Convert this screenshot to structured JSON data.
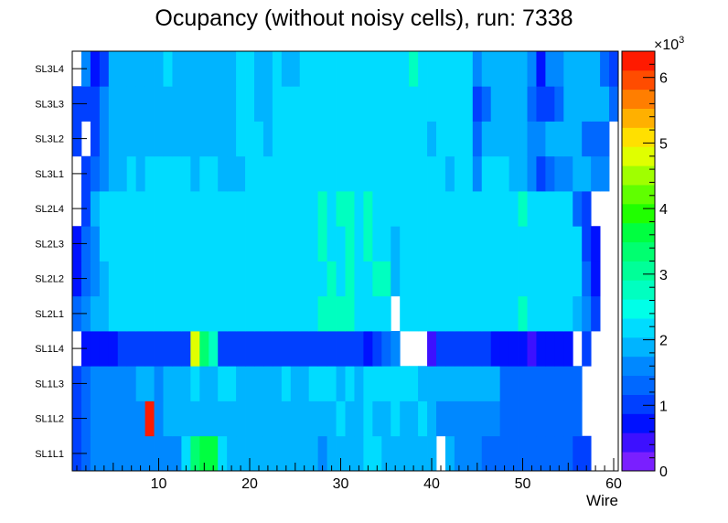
{
  "chart_data": {
    "type": "heatmap",
    "title": "Ocupancy (without noisy cells), run: 7338",
    "xlabel": "Wire",
    "ylabel": "",
    "xlim": [
      0.5,
      60.5
    ],
    "x_ticks": [
      10,
      20,
      30,
      40,
      50,
      60
    ],
    "y_categories": [
      "SL1L1",
      "SL1L2",
      "SL1L3",
      "SL1L4",
      "SL2L1",
      "SL2L2",
      "SL2L3",
      "SL2L4",
      "SL3L1",
      "SL3L2",
      "SL3L3",
      "SL3L4"
    ],
    "z_range": [
      0,
      6400
    ],
    "z_multiplier_label": "×10",
    "z_multiplier_exponent": "3",
    "z_ticks": [
      "0",
      "1",
      "2",
      "3",
      "4",
      "5",
      "6"
    ],
    "z_tick_values": [
      0,
      1000,
      2000,
      3000,
      4000,
      5000,
      6000
    ],
    "palette": [
      "#7a1fff",
      "#3d10ff",
      "#0011ff",
      "#0040ff",
      "#0068ff",
      "#0088ff",
      "#00b4ff",
      "#00dcff",
      "#00ffe8",
      "#00ffc0",
      "#00ff98",
      "#00ff70",
      "#00ff40",
      "#20ff00",
      "#60ff00",
      "#a0ff00",
      "#e0ff00",
      "#ffe000",
      "#ffb000",
      "#ff7e00",
      "#ff4c00",
      "#ff1a00"
    ],
    "rows": [
      {
        "label": "SL1L1",
        "values": [
          1100,
          1300,
          1700,
          1700,
          1700,
          1700,
          1700,
          1700,
          1700,
          1700,
          1700,
          1700,
          2300,
          3400,
          3600,
          3600,
          2300,
          2000,
          2000,
          2000,
          2000,
          2000,
          2000,
          2000,
          2000,
          2000,
          2000,
          1700,
          2000,
          2000,
          2000,
          2000,
          2300,
          2300,
          2000,
          2000,
          2000,
          2000,
          2000,
          2000,
          null,
          2000,
          1700,
          1700,
          1700,
          1200,
          1200,
          1200,
          1200,
          1200,
          1200,
          1200,
          1200,
          1200,
          1200,
          900,
          900,
          null,
          null,
          null
        ]
      },
      {
        "label": "SL1L2",
        "values": [
          1100,
          1300,
          1700,
          1700,
          1500,
          1500,
          1500,
          1500,
          6300,
          1700,
          2000,
          2000,
          2000,
          2000,
          2000,
          2000,
          2000,
          2000,
          2000,
          2000,
          2000,
          2000,
          2000,
          2000,
          2000,
          2000,
          2000,
          2000,
          2000,
          2300,
          2000,
          2000,
          2300,
          2000,
          2000,
          2300,
          2000,
          2000,
          2300,
          2000,
          1700,
          1700,
          1700,
          1700,
          1700,
          1500,
          1700,
          1200,
          1200,
          1200,
          1200,
          1200,
          1200,
          1200,
          1200,
          1200,
          null,
          null,
          null,
          null
        ]
      },
      {
        "label": "SL1L3",
        "values": [
          1100,
          1300,
          1700,
          1700,
          1700,
          1700,
          1700,
          2000,
          2000,
          1700,
          2000,
          2000,
          2000,
          2300,
          2000,
          2000,
          2300,
          2300,
          2000,
          2000,
          2000,
          2000,
          2000,
          2300,
          2000,
          2000,
          2300,
          2300,
          2300,
          2000,
          2300,
          2000,
          2300,
          2300,
          2300,
          2300,
          2300,
          2300,
          2000,
          2000,
          2000,
          2000,
          2000,
          2000,
          2000,
          2000,
          2000,
          1200,
          1200,
          1200,
          1200,
          1200,
          1200,
          1200,
          1200,
          1200,
          null,
          null,
          null,
          null
        ]
      },
      {
        "label": "SL1L4",
        "values": [
          null,
          800,
          800,
          800,
          800,
          1000,
          1000,
          1000,
          1000,
          1000,
          1000,
          1000,
          1000,
          4800,
          3400,
          2800,
          1000,
          1000,
          1000,
          1000,
          1000,
          1000,
          1000,
          1000,
          1000,
          1000,
          1000,
          1000,
          1000,
          1000,
          1000,
          1000,
          700,
          1000,
          1400,
          1700,
          null,
          null,
          null,
          400,
          1000,
          1000,
          1000,
          1000,
          1000,
          1000,
          700,
          700,
          700,
          700,
          500,
          700,
          700,
          700,
          700,
          null,
          1000,
          null,
          null,
          null
        ]
      },
      {
        "label": "SL2L1",
        "values": [
          1400,
          1700,
          2000,
          2000,
          2300,
          2300,
          2300,
          2300,
          2300,
          2300,
          2300,
          2300,
          2300,
          2300,
          2300,
          2300,
          2300,
          2300,
          2300,
          2300,
          2300,
          2300,
          2300,
          2300,
          2300,
          2300,
          2300,
          2800,
          2800,
          2800,
          2800,
          2300,
          2300,
          2300,
          2300,
          null,
          2300,
          2300,
          2300,
          2300,
          2300,
          2300,
          2300,
          2300,
          2300,
          2300,
          2300,
          2300,
          2300,
          2800,
          2300,
          2300,
          2300,
          2300,
          2300,
          2000,
          1700,
          900,
          null,
          null
        ]
      },
      {
        "label": "SL2L2",
        "values": [
          700,
          1400,
          1700,
          2000,
          2300,
          2300,
          2300,
          2300,
          2300,
          2300,
          2300,
          2300,
          2300,
          2300,
          2300,
          2300,
          2300,
          2300,
          2300,
          2300,
          2300,
          2300,
          2300,
          2300,
          2300,
          2300,
          2300,
          2300,
          2800,
          2300,
          2800,
          2300,
          2300,
          2800,
          2800,
          2000,
          2300,
          2300,
          2300,
          2300,
          2300,
          2300,
          2300,
          2300,
          2300,
          2300,
          2300,
          2300,
          2300,
          2300,
          2300,
          2300,
          2300,
          2300,
          2300,
          2300,
          1200,
          800,
          null,
          null
        ]
      },
      {
        "label": "SL2L3",
        "values": [
          800,
          1400,
          1700,
          2300,
          2300,
          2300,
          2300,
          2300,
          2300,
          2300,
          2300,
          2300,
          2300,
          2300,
          2300,
          2300,
          2300,
          2300,
          2300,
          2300,
          2300,
          2300,
          2300,
          2300,
          2300,
          2300,
          2300,
          2800,
          2300,
          2300,
          2800,
          2300,
          2800,
          2300,
          2300,
          2000,
          2300,
          2300,
          2300,
          2300,
          2300,
          2300,
          2300,
          2300,
          2300,
          2300,
          2300,
          2300,
          2300,
          2300,
          2300,
          2300,
          2300,
          2300,
          2300,
          2300,
          1000,
          800,
          null,
          null
        ]
      },
      {
        "label": "SL2L4",
        "values": [
          null,
          1100,
          2000,
          2300,
          2300,
          2300,
          2300,
          2300,
          2300,
          2300,
          2300,
          2300,
          2300,
          2300,
          2300,
          2300,
          2300,
          2300,
          2300,
          2300,
          2300,
          2300,
          2300,
          2300,
          2300,
          2300,
          2300,
          2800,
          2300,
          2800,
          2800,
          2300,
          2800,
          2300,
          2300,
          2300,
          2300,
          2300,
          2300,
          2300,
          2300,
          2300,
          2300,
          2300,
          2300,
          2300,
          2300,
          2300,
          2300,
          2800,
          2300,
          2300,
          2300,
          2300,
          2300,
          1400,
          900,
          null,
          null,
          null
        ]
      },
      {
        "label": "SL3L1",
        "values": [
          null,
          900,
          1300,
          1700,
          2000,
          2000,
          2300,
          2000,
          2300,
          2300,
          2300,
          2300,
          2300,
          2000,
          2300,
          2300,
          2000,
          2000,
          2000,
          2300,
          2300,
          2300,
          2300,
          2300,
          2300,
          2300,
          2300,
          2300,
          2300,
          2300,
          2300,
          2300,
          2300,
          2300,
          2300,
          2300,
          2300,
          2300,
          2300,
          2300,
          2300,
          2000,
          2300,
          2300,
          1700,
          2300,
          2300,
          2300,
          2000,
          2000,
          1700,
          1100,
          1400,
          1700,
          1700,
          2000,
          2000,
          1700,
          1700,
          null
        ]
      },
      {
        "label": "SL3L2",
        "values": [
          900,
          null,
          1100,
          1700,
          2000,
          2000,
          2000,
          2000,
          2000,
          2000,
          2000,
          2000,
          2000,
          2000,
          2000,
          2000,
          2000,
          2000,
          2300,
          2300,
          2300,
          2000,
          2300,
          2300,
          2300,
          2300,
          2300,
          2300,
          2300,
          2300,
          2300,
          2300,
          2300,
          2300,
          2300,
          2300,
          2300,
          2300,
          2300,
          2000,
          2300,
          2300,
          2300,
          2300,
          1400,
          2000,
          2000,
          2000,
          2000,
          2000,
          1700,
          1700,
          2000,
          2000,
          2000,
          2000,
          1400,
          1400,
          1400,
          null
        ]
      },
      {
        "label": "SL3L3",
        "values": [
          900,
          900,
          1100,
          1700,
          2000,
          2000,
          2000,
          2000,
          2000,
          2000,
          2000,
          2000,
          2000,
          2000,
          2000,
          2000,
          2000,
          2000,
          2300,
          2300,
          2000,
          2000,
          2300,
          2300,
          2300,
          2300,
          2300,
          2300,
          2300,
          2300,
          2300,
          2300,
          2300,
          2300,
          2300,
          2300,
          2300,
          2300,
          2300,
          2300,
          2300,
          2300,
          2300,
          2300,
          1000,
          1400,
          2000,
          2000,
          2000,
          2000,
          1400,
          1100,
          1100,
          1400,
          2000,
          2000,
          2000,
          2000,
          2000,
          1400
        ]
      },
      {
        "label": "SL3L4",
        "values": [
          null,
          1700,
          600,
          900,
          2000,
          2000,
          2000,
          2000,
          2000,
          2000,
          2300,
          2000,
          2000,
          2000,
          2000,
          2000,
          2000,
          2000,
          2300,
          2300,
          2000,
          2000,
          2300,
          2000,
          2000,
          2300,
          2300,
          2300,
          2300,
          2300,
          2300,
          2300,
          2300,
          2300,
          2300,
          2300,
          2300,
          2800,
          2300,
          2300,
          2300,
          2300,
          2300,
          2300,
          1700,
          2000,
          2000,
          2000,
          2000,
          2000,
          1700,
          600,
          1700,
          1700,
          2000,
          2000,
          2000,
          2000,
          1400,
          900
        ]
      }
    ]
  }
}
